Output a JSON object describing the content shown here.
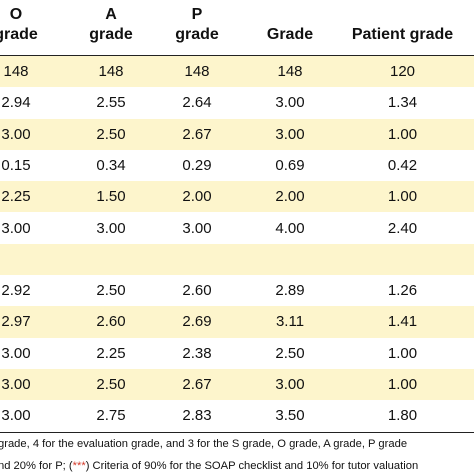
{
  "header": {
    "col_o": [
      "O",
      "grade"
    ],
    "col_a": [
      "A",
      "grade"
    ],
    "col_p": [
      "P",
      "grade"
    ],
    "col_grade": "Grade",
    "col_patient": "Patient grade"
  },
  "rows": [
    {
      "shaded": true,
      "o": "148",
      "a": "148",
      "p": "148",
      "grade": "148",
      "patient": "120"
    },
    {
      "shaded": false,
      "o": "2.94",
      "a": "2.55",
      "p": "2.64",
      "grade": "3.00",
      "patient": "1.34"
    },
    {
      "shaded": true,
      "o": "3.00",
      "a": "2.50",
      "p": "2.67",
      "grade": "3.00",
      "patient": "1.00"
    },
    {
      "shaded": false,
      "o": "0.15",
      "a": "0.34",
      "p": "0.29",
      "grade": "0.69",
      "patient": "0.42"
    },
    {
      "shaded": true,
      "o": "2.25",
      "a": "1.50",
      "p": "2.00",
      "grade": "2.00",
      "patient": "1.00"
    },
    {
      "shaded": false,
      "o": "3.00",
      "a": "3.00",
      "p": "3.00",
      "grade": "4.00",
      "patient": "2.40"
    },
    {
      "shaded": true,
      "o": "",
      "a": "",
      "p": "",
      "grade": "",
      "patient": ""
    },
    {
      "shaded": false,
      "o": "2.92",
      "a": "2.50",
      "p": "2.60",
      "grade": "2.89",
      "patient": "1.26"
    },
    {
      "shaded": true,
      "o": "2.97",
      "a": "2.60",
      "p": "2.69",
      "grade": "3.11",
      "patient": "1.41"
    },
    {
      "shaded": false,
      "o": "3.00",
      "a": "2.25",
      "p": "2.38",
      "grade": "2.50",
      "patient": "1.00"
    },
    {
      "shaded": true,
      "o": "3.00",
      "a": "2.50",
      "p": "2.67",
      "grade": "3.00",
      "patient": "1.00"
    },
    {
      "shaded": false,
      "o": "3.00",
      "a": "2.75",
      "p": "2.83",
      "grade": "3.50",
      "patient": "1.80"
    }
  ],
  "footnotes": {
    "line1": "grade, 4 for the evaluation grade, and 3 for the S grade, O grade, A grade, P grade",
    "line2_prefix": "nd 20% for P; (",
    "line2_marker": "***",
    "line2_suffix": ") Criteria of 90% for the SOAP checklist and 10% for tutor valuation"
  }
}
